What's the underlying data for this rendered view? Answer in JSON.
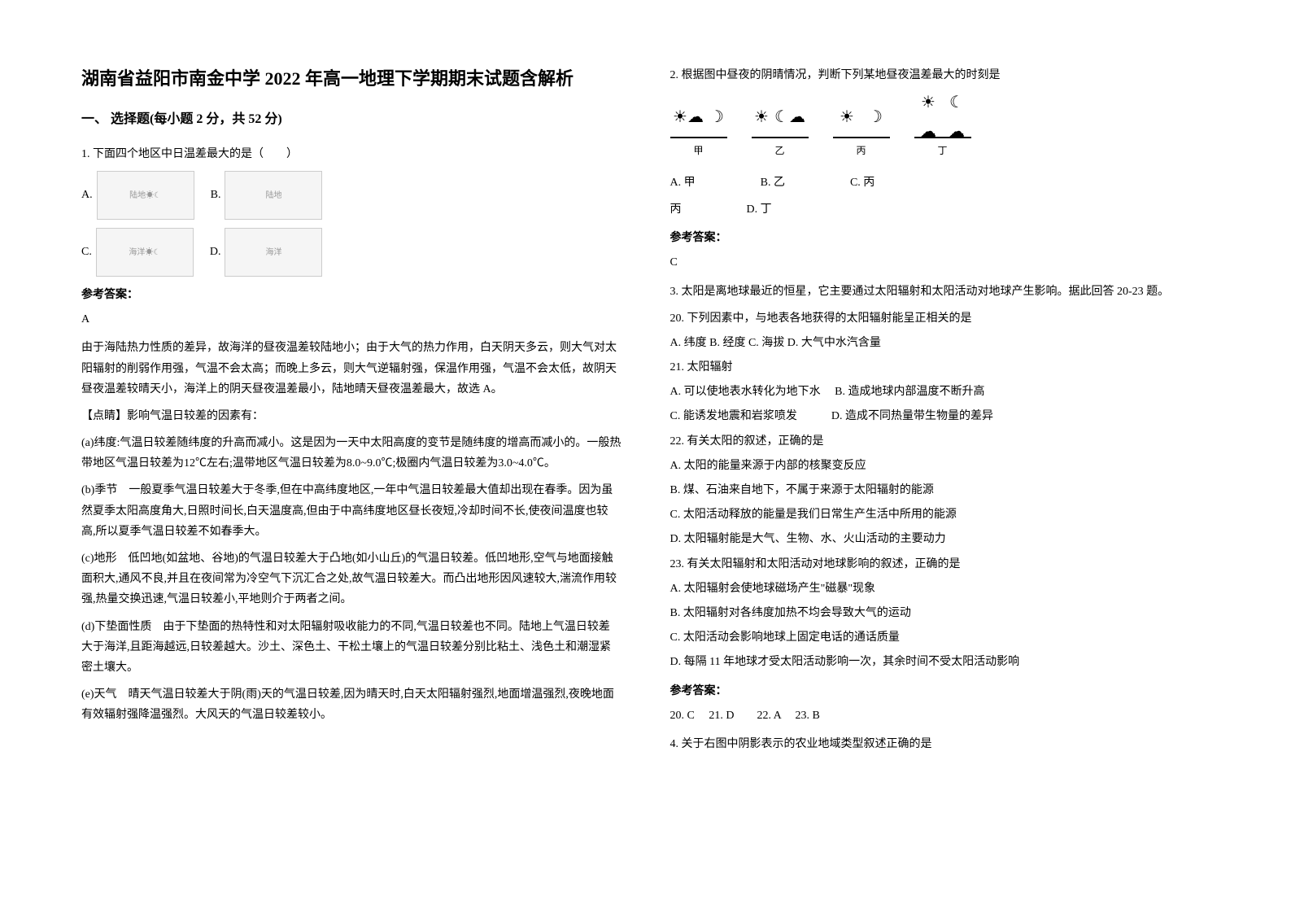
{
  "title": "湖南省益阳市南金中学 2022 年高一地理下学期期末试题含解析",
  "section1": {
    "header": "一、 选择题(每小题 2 分，共 52 分)",
    "q1": {
      "stem": "1. 下面四个地区中日温差最大的是（　　）",
      "optA": "A.",
      "optB": "B.",
      "optC": "C.",
      "optD": "D.",
      "answerHeader": "参考答案：",
      "answer": "A",
      "exp1": "由于海陆热力性质的差异，故海洋的昼夜温差较陆地小；由于大气的热力作用，白天阴天多云，则大气对太阳辐射的削弱作用强，气温不会太高；而晚上多云，则大气逆辐射强，保温作用强，气温不会太低，故阴天昼夜温差较晴天小，海洋上的阴天昼夜温差最小，陆地晴天昼夜温差最大，故选 A。",
      "exp2": "【点睛】影响气温日较差的因素有：",
      "exp3": "(a)纬度:气温日较差随纬度的升高而减小。这是因为一天中太阳高度的变节是随纬度的增高而减小的。一般热带地区气温日较差为12℃左右;温带地区气温日较差为8.0~9.0℃;极圈内气温日较差为3.0~4.0℃。",
      "exp4": "(b)季节　一般夏季气温日较差大于冬季,但在中高纬度地区,一年中气温日较差最大值却出现在春季。因为虽然夏季太阳高度角大,日照时间长,白天温度高,但由于中高纬度地区昼长夜短,冷却时间不长,使夜间温度也较高,所以夏季气温日较差不如春季大。",
      "exp5": "(c)地形　低凹地(如盆地、谷地)的气温日较差大于凸地(如小山丘)的气温日较差。低凹地形,空气与地面接触面积大,通风不良,并且在夜间常为冷空气下沉汇合之处,故气温日较差大。而凸出地形因风速较大,湍流作用较强,热量交换迅速,气温日较差小,平地则介于两者之间。",
      "exp6": "(d)下垫面性质　由于下垫面的热特性和对太阳辐射吸收能力的不同,气温日较差也不同。陆地上气温日较差大于海洋,且距海越远,日较差越大。沙土、深色土、干松土壤上的气温日较差分别比粘土、浅色土和潮湿紧密土壤大。",
      "exp7": "(e)天气　晴天气温日较差大于阴(雨)天的气温日较差,因为晴天时,白天太阳辐射强烈,地面增温强烈,夜晚地面有效辐射强降温强烈。大风天的气温日较差较小。"
    }
  },
  "section2": {
    "q2": {
      "stem": "2. 根据图中昼夜的阴晴情况，判断下列某地昼夜温差最大的时刻是",
      "labels": {
        "a": "甲",
        "b": "乙",
        "c": "丙",
        "d": "丁"
      },
      "optA": "A. 甲",
      "optB": "B. 乙",
      "optC": "C. 丙",
      "optD": "D. 丁",
      "answerHeader": "参考答案：",
      "answer": "C"
    },
    "q3": {
      "stem": "3. 太阳是离地球最近的恒星，它主要通过太阳辐射和太阳活动对地球产生影响。据此回答 20-23 题。",
      "sub20": "20. 下列因素中，与地表各地获得的太阳辐射能呈正相关的是",
      "sub20opts": "A. 纬度 B. 经度 C. 海拔 D. 大气中水汽含量",
      "sub21": "21. 太阳辐射",
      "sub21a": "A. 可以使地表水转化为地下水　 B. 造成地球内部温度不断升高",
      "sub21c": "C. 能诱发地震和岩浆喷发　　　D. 造成不同热量带生物量的差异",
      "sub22": "22. 有关太阳的叙述，正确的是",
      "sub22a": "A. 太阳的能量来源于内部的核聚变反应",
      "sub22b": "B. 煤、石油来自地下，不属于来源于太阳辐射的能源",
      "sub22c": "C. 太阳活动释放的能量是我们日常生产生活中所用的能源",
      "sub22d": "D. 太阳辐射能是大气、生物、水、火山活动的主要动力",
      "sub23": "23. 有关太阳辐射和太阳活动对地球影响的叙述，正确的是",
      "sub23a": "A. 太阳辐射会使地球磁场产生\"磁暴\"现象",
      "sub23b": "B. 太阳辐射对各纬度加热不均会导致大气的运动",
      "sub23c": "C. 太阳活动会影响地球上固定电话的通话质量",
      "sub23d": "D. 每隔 11 年地球才受太阳活动影响一次，其余时间不受太阳活动影响",
      "answerHeader": "参考答案：",
      "answer": "20. C　 21. D　　22. A　 23. B"
    },
    "q4": {
      "stem": "4. 关于右图中阴影表示的农业地域类型叙述正确的是"
    }
  },
  "icons": {
    "sun": "☀",
    "moon": "☽",
    "cloud": "☁"
  }
}
